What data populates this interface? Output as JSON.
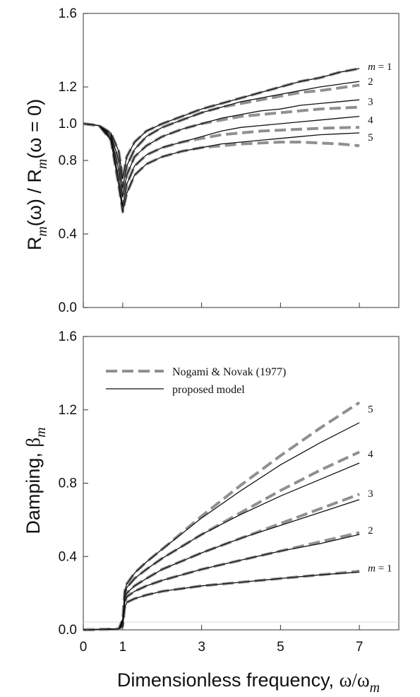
{
  "chart_data": [
    {
      "type": "line",
      "ylabel": "R_m(ω) / R_m(ω=0)",
      "xlim": [
        0,
        8
      ],
      "ylim": [
        0,
        1.6
      ],
      "xticks": [
        0,
        1,
        3,
        5,
        7
      ],
      "xtick_labels": [],
      "yticks": [
        0,
        0.4,
        0.8,
        1.0,
        1.2,
        1.6
      ],
      "ytick_labels": [
        "0.0",
        "0.4",
        "0.8",
        "1.0",
        "1.2",
        "1.6"
      ],
      "grid": false,
      "curve_labels": [
        "m = 1",
        "2",
        "3",
        "4",
        "5"
      ],
      "series": [
        {
          "group": "Nogami & Novak (1977)",
          "style": "dashed",
          "m": 1,
          "x": [
            0,
            0.4,
            0.7,
            0.9,
            1.0,
            1.1,
            1.3,
            1.6,
            2,
            2.5,
            3,
            3.5,
            4,
            4.5,
            5,
            5.5,
            6,
            6.5,
            7
          ],
          "y": [
            1.0,
            0.99,
            0.95,
            0.85,
            0.7,
            0.82,
            0.9,
            0.96,
            1.0,
            1.04,
            1.08,
            1.11,
            1.14,
            1.17,
            1.2,
            1.23,
            1.25,
            1.28,
            1.3
          ]
        },
        {
          "group": "proposed model",
          "style": "solid",
          "m": 1,
          "x": [
            0,
            0.4,
            0.7,
            0.9,
            1.0,
            1.1,
            1.3,
            1.6,
            2,
            2.5,
            3,
            3.5,
            4,
            4.5,
            5,
            5.5,
            6,
            6.5,
            7
          ],
          "y": [
            1.0,
            0.99,
            0.95,
            0.85,
            0.7,
            0.82,
            0.9,
            0.96,
            1.0,
            1.04,
            1.08,
            1.11,
            1.14,
            1.17,
            1.2,
            1.23,
            1.25,
            1.28,
            1.3
          ]
        },
        {
          "group": "Nogami & Novak (1977)",
          "style": "dashed",
          "m": 2,
          "x": [
            0,
            0.4,
            0.7,
            0.9,
            1.0,
            1.1,
            1.3,
            1.6,
            2,
            2.5,
            3,
            3.5,
            4,
            4.5,
            5,
            5.5,
            6,
            6.5,
            7
          ],
          "y": [
            1.0,
            0.99,
            0.94,
            0.8,
            0.65,
            0.77,
            0.86,
            0.93,
            0.98,
            1.02,
            1.06,
            1.09,
            1.11,
            1.13,
            1.15,
            1.17,
            1.18,
            1.195,
            1.21
          ]
        },
        {
          "group": "proposed model",
          "style": "solid",
          "m": 2,
          "x": [
            0,
            0.4,
            0.7,
            0.9,
            1.0,
            1.1,
            1.3,
            1.6,
            2,
            2.5,
            3,
            3.5,
            4,
            4.5,
            5,
            5.5,
            6,
            6.5,
            7
          ],
          "y": [
            1.0,
            0.99,
            0.94,
            0.8,
            0.65,
            0.77,
            0.86,
            0.93,
            0.98,
            1.02,
            1.06,
            1.09,
            1.12,
            1.14,
            1.16,
            1.18,
            1.2,
            1.215,
            1.23
          ]
        },
        {
          "group": "Nogami & Novak (1977)",
          "style": "dashed",
          "m": 3,
          "x": [
            0,
            0.4,
            0.7,
            0.9,
            1.0,
            1.1,
            1.3,
            1.6,
            2,
            2.5,
            3,
            3.5,
            4,
            4.5,
            5,
            5.5,
            6,
            6.5,
            7
          ],
          "y": [
            1.0,
            0.99,
            0.93,
            0.75,
            0.6,
            0.72,
            0.82,
            0.88,
            0.93,
            0.97,
            1.0,
            1.02,
            1.04,
            1.05,
            1.06,
            1.07,
            1.08,
            1.085,
            1.09
          ]
        },
        {
          "group": "proposed model",
          "style": "solid",
          "m": 3,
          "x": [
            0,
            0.4,
            0.7,
            0.9,
            1.0,
            1.1,
            1.3,
            1.6,
            2,
            2.5,
            3,
            3.5,
            4,
            4.5,
            5,
            5.5,
            6,
            6.5,
            7
          ],
          "y": [
            1.0,
            0.99,
            0.93,
            0.75,
            0.6,
            0.72,
            0.82,
            0.88,
            0.93,
            0.97,
            1.0,
            1.03,
            1.05,
            1.07,
            1.08,
            1.1,
            1.11,
            1.12,
            1.13
          ]
        },
        {
          "group": "Nogami & Novak (1977)",
          "style": "dashed",
          "m": 4,
          "x": [
            0,
            0.4,
            0.7,
            0.9,
            1.0,
            1.1,
            1.3,
            1.6,
            2,
            2.5,
            3,
            3.5,
            4,
            4.5,
            5,
            5.5,
            6,
            6.5,
            7
          ],
          "y": [
            1.0,
            0.99,
            0.92,
            0.7,
            0.55,
            0.67,
            0.77,
            0.83,
            0.87,
            0.9,
            0.92,
            0.94,
            0.95,
            0.96,
            0.965,
            0.97,
            0.975,
            0.978,
            0.98
          ]
        },
        {
          "group": "proposed model",
          "style": "solid",
          "m": 4,
          "x": [
            0,
            0.4,
            0.7,
            0.9,
            1.0,
            1.1,
            1.3,
            1.6,
            2,
            2.5,
            3,
            3.5,
            4,
            4.5,
            5,
            5.5,
            6,
            6.5,
            7
          ],
          "y": [
            1.0,
            0.99,
            0.92,
            0.7,
            0.55,
            0.67,
            0.77,
            0.83,
            0.87,
            0.9,
            0.93,
            0.96,
            0.98,
            0.99,
            1.0,
            1.01,
            1.02,
            1.03,
            1.04
          ]
        },
        {
          "group": "Nogami & Novak (1977)",
          "style": "dashed",
          "m": 5,
          "x": [
            0,
            0.4,
            0.7,
            0.9,
            1.0,
            1.1,
            1.3,
            1.6,
            2,
            2.5,
            3,
            3.5,
            4,
            4.5,
            5,
            5.5,
            6,
            6.5,
            7
          ],
          "y": [
            1.0,
            0.99,
            0.91,
            0.66,
            0.52,
            0.62,
            0.72,
            0.78,
            0.82,
            0.85,
            0.87,
            0.88,
            0.89,
            0.895,
            0.9,
            0.9,
            0.895,
            0.89,
            0.88
          ]
        },
        {
          "group": "proposed model",
          "style": "solid",
          "m": 5,
          "x": [
            0,
            0.4,
            0.7,
            0.9,
            1.0,
            1.1,
            1.3,
            1.6,
            2,
            2.5,
            3,
            3.5,
            4,
            4.5,
            5,
            5.5,
            6,
            6.5,
            7
          ],
          "y": [
            1.0,
            0.99,
            0.91,
            0.66,
            0.52,
            0.62,
            0.72,
            0.78,
            0.82,
            0.85,
            0.87,
            0.89,
            0.9,
            0.91,
            0.92,
            0.93,
            0.94,
            0.945,
            0.95
          ]
        }
      ]
    },
    {
      "type": "line",
      "xlabel": "Dimensionless frequency, ω/ω_m",
      "ylabel": "Damping, β_m",
      "xlim": [
        0,
        8
      ],
      "ylim": [
        0,
        1.6
      ],
      "xticks": [
        0,
        1,
        3,
        5,
        7
      ],
      "xtick_labels": [
        "0",
        "1",
        "3",
        "5",
        "7"
      ],
      "yticks": [
        0,
        0.4,
        0.8,
        1.2,
        1.6
      ],
      "ytick_labels": [
        "0.0",
        "0.4",
        "0.8",
        "1.2",
        "1.6"
      ],
      "grid": false,
      "legend": {
        "placement": "top-left",
        "entries": [
          {
            "label": "Nogami & Novak (1977)",
            "style": "dashed"
          },
          {
            "label": "proposed model",
            "style": "solid"
          }
        ]
      },
      "curve_labels": [
        "5",
        "4",
        "3",
        "2",
        "m = 1"
      ],
      "series": [
        {
          "group": "Nogami & Novak (1977)",
          "style": "dashed",
          "m": 1,
          "x": [
            0,
            0.9,
            1.0,
            1.05,
            1.1,
            1.3,
            1.6,
            2,
            3,
            4,
            5,
            6,
            7
          ],
          "y": [
            0,
            0.005,
            0.02,
            0.12,
            0.15,
            0.17,
            0.19,
            0.21,
            0.24,
            0.26,
            0.28,
            0.3,
            0.32
          ]
        },
        {
          "group": "proposed model",
          "style": "solid",
          "m": 1,
          "x": [
            0,
            0.9,
            1.0,
            1.05,
            1.1,
            1.3,
            1.6,
            2,
            3,
            4,
            5,
            6,
            7
          ],
          "y": [
            0,
            0.005,
            0.02,
            0.12,
            0.15,
            0.17,
            0.19,
            0.21,
            0.24,
            0.26,
            0.28,
            0.3,
            0.315
          ]
        },
        {
          "group": "Nogami & Novak (1977)",
          "style": "dashed",
          "m": 2,
          "x": [
            0,
            0.9,
            1.0,
            1.05,
            1.1,
            1.3,
            1.6,
            2,
            3,
            4,
            5,
            6,
            7
          ],
          "y": [
            0,
            0.005,
            0.03,
            0.15,
            0.18,
            0.21,
            0.24,
            0.27,
            0.33,
            0.38,
            0.43,
            0.48,
            0.53
          ]
        },
        {
          "group": "proposed model",
          "style": "solid",
          "m": 2,
          "x": [
            0,
            0.9,
            1.0,
            1.05,
            1.1,
            1.3,
            1.6,
            2,
            3,
            4,
            5,
            6,
            7
          ],
          "y": [
            0,
            0.005,
            0.03,
            0.15,
            0.18,
            0.21,
            0.24,
            0.27,
            0.33,
            0.38,
            0.43,
            0.47,
            0.52
          ]
        },
        {
          "group": "Nogami & Novak (1977)",
          "style": "dashed",
          "m": 3,
          "x": [
            0,
            0.9,
            1.0,
            1.05,
            1.1,
            1.3,
            1.6,
            2,
            3,
            4,
            5,
            6,
            7
          ],
          "y": [
            0,
            0.005,
            0.04,
            0.17,
            0.2,
            0.24,
            0.28,
            0.33,
            0.42,
            0.5,
            0.58,
            0.66,
            0.74
          ]
        },
        {
          "group": "proposed model",
          "style": "solid",
          "m": 3,
          "x": [
            0,
            0.9,
            1.0,
            1.05,
            1.1,
            1.3,
            1.6,
            2,
            3,
            4,
            5,
            6,
            7
          ],
          "y": [
            0,
            0.005,
            0.04,
            0.17,
            0.2,
            0.24,
            0.28,
            0.33,
            0.42,
            0.5,
            0.57,
            0.64,
            0.71
          ]
        },
        {
          "group": "Nogami & Novak (1977)",
          "style": "dashed",
          "m": 4,
          "x": [
            0,
            0.9,
            1.0,
            1.05,
            1.1,
            1.3,
            1.6,
            2,
            3,
            4,
            5,
            6,
            7
          ],
          "y": [
            0,
            0.005,
            0.05,
            0.19,
            0.23,
            0.28,
            0.33,
            0.39,
            0.52,
            0.64,
            0.76,
            0.87,
            0.97
          ]
        },
        {
          "group": "proposed model",
          "style": "solid",
          "m": 4,
          "x": [
            0,
            0.9,
            1.0,
            1.05,
            1.1,
            1.3,
            1.6,
            2,
            3,
            4,
            5,
            6,
            7
          ],
          "y": [
            0,
            0.005,
            0.05,
            0.19,
            0.23,
            0.28,
            0.33,
            0.39,
            0.52,
            0.63,
            0.73,
            0.82,
            0.91
          ]
        },
        {
          "group": "Nogami & Novak (1977)",
          "style": "dashed",
          "m": 5,
          "x": [
            0,
            0.9,
            1.0,
            1.05,
            1.1,
            1.3,
            1.6,
            2,
            3,
            4,
            5,
            6,
            7
          ],
          "y": [
            0,
            0.005,
            0.06,
            0.21,
            0.25,
            0.31,
            0.37,
            0.44,
            0.62,
            0.79,
            0.95,
            1.1,
            1.24
          ]
        },
        {
          "group": "proposed model",
          "style": "solid",
          "m": 5,
          "x": [
            0,
            0.9,
            1.0,
            1.05,
            1.1,
            1.3,
            1.6,
            2,
            3,
            4,
            5,
            6,
            7
          ],
          "y": [
            0,
            0.005,
            0.06,
            0.21,
            0.25,
            0.31,
            0.37,
            0.44,
            0.61,
            0.76,
            0.9,
            1.02,
            1.13
          ]
        }
      ]
    }
  ]
}
